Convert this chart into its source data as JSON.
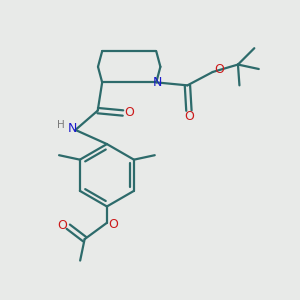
{
  "background_color": "#e8eae8",
  "bond_color": "#2d6b6b",
  "N_color": "#1a1acc",
  "O_color": "#cc1a1a",
  "H_color": "#7a7a7a",
  "line_width": 1.6,
  "figsize": [
    3.0,
    3.0
  ],
  "dpi": 100,
  "xlim": [
    0,
    10
  ],
  "ylim": [
    0,
    10
  ]
}
